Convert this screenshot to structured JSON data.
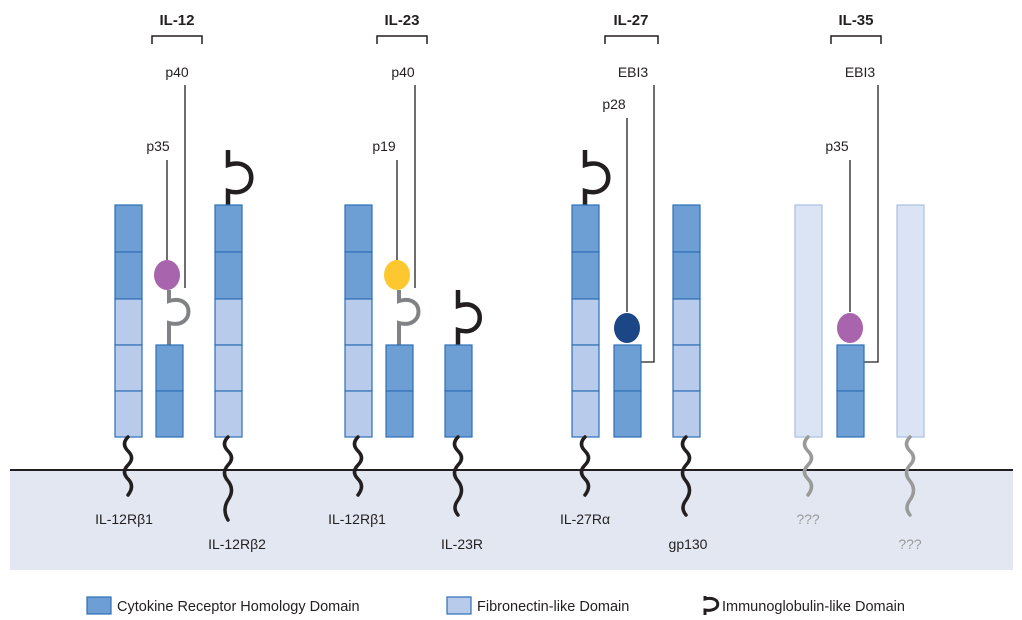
{
  "groups": [
    {
      "title": "IL-12",
      "subunit_top": "p40",
      "subunit_lower": "p35",
      "receptor_left": "IL-12Rβ1",
      "receptor_right": "IL-12Rβ2"
    },
    {
      "title": "IL-23",
      "subunit_top": "p40",
      "subunit_lower": "p19",
      "receptor_left": "IL-12Rβ1",
      "receptor_right": "IL-23R"
    },
    {
      "title": "IL-27",
      "subunit_top": "EBI3",
      "subunit_lower": "p28",
      "receptor_left": "IL-27Rα",
      "receptor_right": "gp130"
    },
    {
      "title": "IL-35",
      "subunit_top": "EBI3",
      "subunit_lower": "p35",
      "receptor_left": "???",
      "receptor_right": "???"
    }
  ],
  "legend": {
    "crh_label": "Cytokine Receptor Homology Domain",
    "fn_label": "Fibronectin-like Domain",
    "ig_label": "Immunoglobulin-like Domain"
  },
  "colors": {
    "crh_fill": "#6e9fd4",
    "crh_stroke": "#2d6fb7",
    "fn_fill": "#b9cbea",
    "fn_stroke": "#2d6fb7",
    "faint_fill": "#dbe4f4",
    "faint_stroke": "#a9bfe2",
    "membrane_bg": "#e2e7f2",
    "membrane_line": "#231f20",
    "p35": "#a865ad",
    "p19": "#fdc82f",
    "p28": "#1c4786",
    "ig_dark": "#231f20",
    "ig_gray": "#808285",
    "faint_tail": "#9a9a9a"
  }
}
